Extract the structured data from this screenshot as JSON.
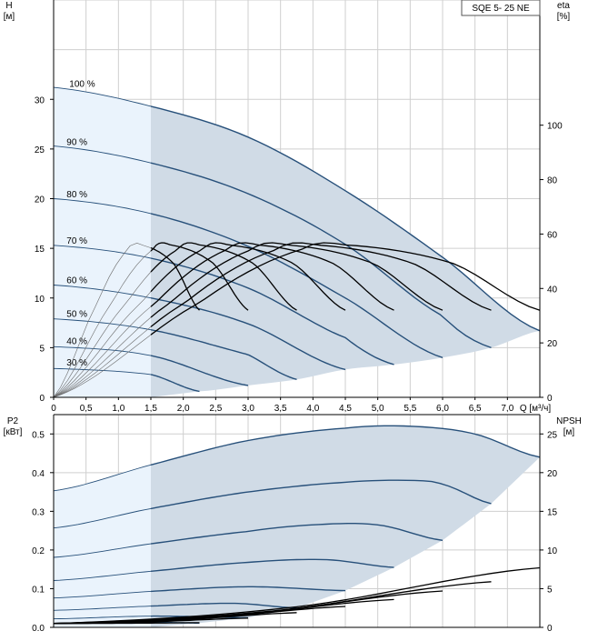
{
  "model_label": "SQE 5- 25 NE",
  "colors": {
    "grid": "#cfcfcf",
    "band_light": "#eaf3fc",
    "band_dark": "#d0dbe6",
    "curve": "#27507a",
    "eta": "#000000",
    "thin": "#6b6b6b"
  },
  "chart_data": [
    {
      "id": "head",
      "type": "line",
      "title": "",
      "ylabel_left": [
        "H",
        "[м]"
      ],
      "ylabel_right": [
        "eta",
        "[%]"
      ],
      "xlabel": "Q [м³/ч]",
      "xlim": [
        0,
        7.5
      ],
      "ylim": [
        0,
        40
      ],
      "y2lim": [
        0,
        146
      ],
      "xticks": [
        "0",
        "0,5",
        "1,0",
        "1,5",
        "2,0",
        "2,5",
        "3,0",
        "3,5",
        "4,0",
        "4,5",
        "5,0",
        "5,5",
        "6,0",
        "6,5",
        "7,0"
      ],
      "yticks": [
        "0",
        "5",
        "10",
        "15",
        "20",
        "25",
        "30"
      ],
      "y2ticks": [
        "0",
        "20",
        "40",
        "60",
        "80",
        "100"
      ],
      "grid": true,
      "series": [
        {
          "name": "100 %",
          "speed": 1.0,
          "x": [
            0,
            1.5,
            3.0,
            4.5,
            6.0,
            7.5
          ],
          "y": [
            31.2,
            29.3,
            26.2,
            20.8,
            14.1,
            6.7
          ]
        },
        {
          "name": "90 %",
          "speed": 0.9,
          "x": [
            0,
            1.5,
            3.0,
            4.5,
            6.0,
            6.75
          ],
          "y": [
            25.3,
            23.6,
            20.5,
            15.4,
            8.2,
            5.0
          ]
        },
        {
          "name": "80 %",
          "speed": 0.8,
          "x": [
            0,
            1.5,
            3.0,
            4.5,
            6.0
          ],
          "y": [
            20.0,
            18.5,
            15.2,
            10.0,
            4.0
          ]
        },
        {
          "name": "70 %",
          "speed": 0.7,
          "x": [
            0,
            1.5,
            3.0,
            4.5,
            5.25
          ],
          "y": [
            15.3,
            14.0,
            11.0,
            6.0,
            3.3
          ]
        },
        {
          "name": "60 %",
          "speed": 0.6,
          "x": [
            0,
            1.5,
            3.0,
            4.5
          ],
          "y": [
            11.3,
            10.0,
            7.4,
            2.8
          ]
        },
        {
          "name": "50 %",
          "speed": 0.5,
          "x": [
            0,
            1.5,
            3.0,
            3.75
          ],
          "y": [
            7.9,
            6.8,
            4.3,
            1.8
          ]
        },
        {
          "name": "40 %",
          "speed": 0.4,
          "x": [
            0,
            1.5,
            3.0
          ],
          "y": [
            5.1,
            4.2,
            1.2
          ]
        },
        {
          "name": "30 %",
          "speed": 0.3,
          "x": [
            0,
            1.5,
            2.25
          ],
          "y": [
            2.9,
            2.3,
            0.6
          ]
        }
      ],
      "min_flow_limit": {
        "x": [
          2.25,
          3.0,
          3.75,
          4.5,
          5.25,
          6.0,
          6.75,
          7.5
        ],
        "y": [
          0.6,
          1.2,
          1.8,
          2.8,
          3.3,
          4.0,
          5.0,
          6.7
        ]
      },
      "eta_peak_percent": 56,
      "eta_curves_end_flow": [
        2.25,
        3.0,
        3.75,
        4.5,
        5.25,
        6.0,
        6.75,
        7.5
      ],
      "eta_curve_end_percent": [
        32,
        32,
        32,
        32,
        32,
        32,
        32,
        32
      ]
    },
    {
      "id": "power",
      "type": "line",
      "title": "",
      "ylabel_left": [
        "P2",
        "[кВт]"
      ],
      "ylabel_right": [
        "NPSH",
        "[м]"
      ],
      "xlim": [
        0,
        7.5
      ],
      "ylim": [
        0,
        0.55
      ],
      "y2lim": [
        0,
        27.5
      ],
      "yticks": [
        "0.0",
        "0.1",
        "0.2",
        "0.3",
        "0.4",
        "0.5"
      ],
      "y2ticks": [
        "0",
        "5",
        "10",
        "15",
        "20",
        "25"
      ],
      "grid": true,
      "series": [
        {
          "speed": 1.0,
          "x": [
            0,
            1.5,
            3.0,
            4.5,
            5.5,
            6.5,
            7.5
          ],
          "y": [
            0.353,
            0.42,
            0.483,
            0.515,
            0.52,
            0.5,
            0.44
          ]
        },
        {
          "speed": 0.9,
          "x": [
            0,
            1.5,
            3.0,
            4.5,
            5.5,
            6.0,
            6.75
          ],
          "y": [
            0.257,
            0.307,
            0.35,
            0.375,
            0.38,
            0.37,
            0.32
          ]
        },
        {
          "speed": 0.8,
          "x": [
            0,
            1.5,
            3.0,
            4.0,
            5.0,
            6.0
          ],
          "y": [
            0.181,
            0.216,
            0.248,
            0.265,
            0.265,
            0.225
          ]
        },
        {
          "speed": 0.7,
          "x": [
            0,
            1.5,
            3.0,
            4.2,
            5.25
          ],
          "y": [
            0.121,
            0.145,
            0.168,
            0.175,
            0.155
          ]
        },
        {
          "speed": 0.6,
          "x": [
            0,
            1.5,
            3.0,
            4.5
          ],
          "y": [
            0.076,
            0.093,
            0.105,
            0.095
          ]
        },
        {
          "speed": 0.5,
          "x": [
            0,
            1.5,
            2.8,
            3.75
          ],
          "y": [
            0.044,
            0.055,
            0.062,
            0.05
          ]
        },
        {
          "speed": 0.4,
          "x": [
            0,
            1.5,
            3.0
          ],
          "y": [
            0.022,
            0.029,
            0.025
          ]
        },
        {
          "speed": 0.3,
          "x": [
            0,
            1.5,
            2.25
          ],
          "y": [
            0.01,
            0.013,
            0.011
          ]
        }
      ],
      "npsh_curves_end": {
        "x": [
          2.25,
          3.0,
          3.75,
          4.5,
          5.25,
          6.0,
          6.75,
          7.5
        ],
        "y": [
          0.6,
          1.2,
          1.9,
          2.7,
          3.6,
          4.7,
          5.9,
          7.7
        ]
      }
    }
  ]
}
